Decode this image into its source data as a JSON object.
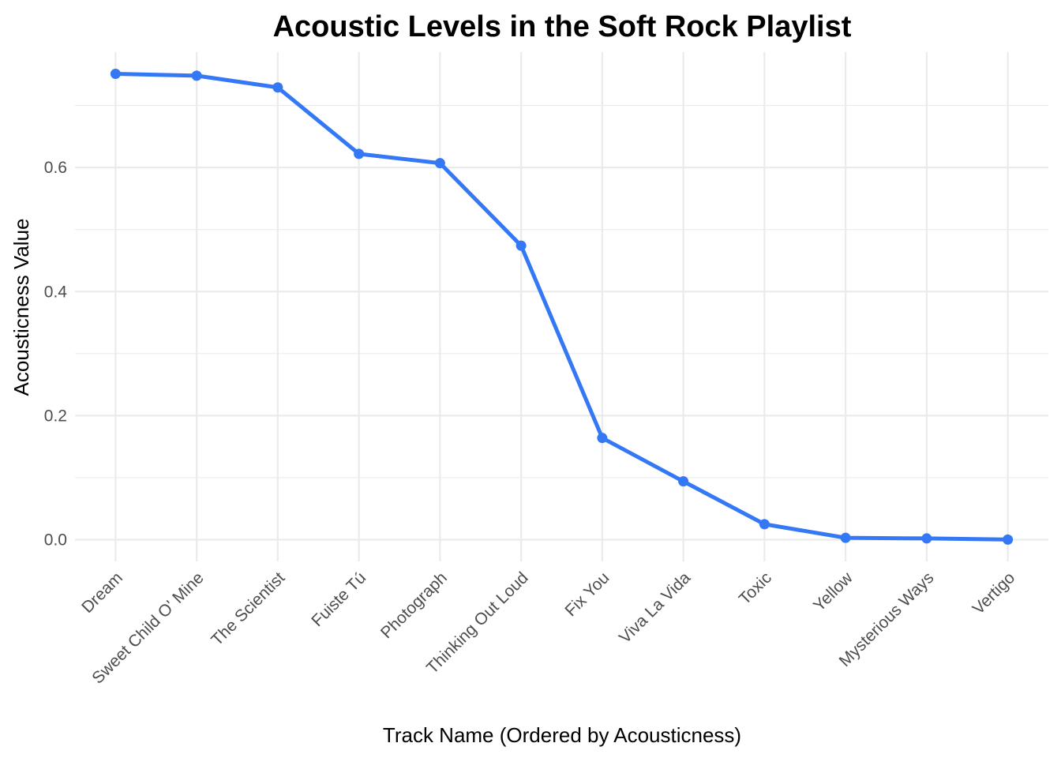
{
  "chart_data": {
    "type": "line",
    "title": "Acoustic Levels in the Soft Rock Playlist",
    "xlabel": "Track Name (Ordered by Acousticness)",
    "ylabel": "Acousticness Value",
    "categories": [
      "Dream",
      "Sweet Child O' Mine",
      "The Scientist",
      "Fuiste Tú",
      "Photograph",
      "Thinking Out Loud",
      "Fix You",
      "Viva La Vida",
      "Toxic",
      "Yellow",
      "Mysterious Ways",
      "Vertigo"
    ],
    "values": [
      0.751,
      0.748,
      0.729,
      0.622,
      0.607,
      0.474,
      0.164,
      0.094,
      0.025,
      0.003,
      0.002,
      0.0002
    ],
    "ylim": [
      -0.035,
      0.786
    ],
    "y_ticks": [
      0.0,
      0.2,
      0.4,
      0.6
    ],
    "y_tick_labels": [
      "0.0",
      "0.2",
      "0.4",
      "0.6"
    ],
    "grid": true,
    "legend": "none",
    "line_color": "#3478F6"
  }
}
